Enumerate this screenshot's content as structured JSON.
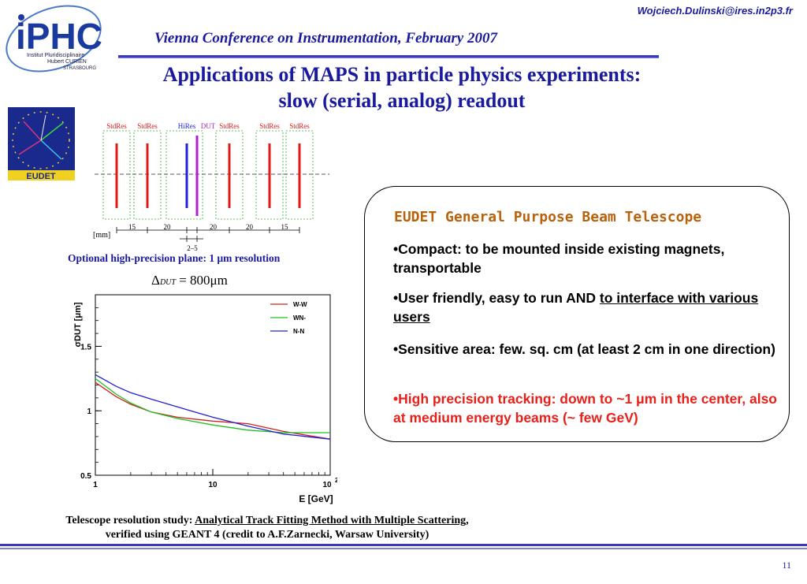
{
  "header": {
    "email": "Wojciech.Dulinski@ires.in2p3.fr",
    "conference": "Vienna Conference on Instrumentation, February 2007",
    "title_line1": "Applications of MAPS in particle physics experiments:",
    "title_line2": "slow (serial, analog) readout"
  },
  "logo": {
    "name": "iPHC",
    "line1": "Institut Pluridisciplinaire",
    "line2": "Hubert CURIEN",
    "line3": "STRASBOURG"
  },
  "eudet_logo": {
    "text": "EUDET"
  },
  "telescope_geometry": {
    "planes": [
      "StdRes",
      "StdRes",
      "HiRes",
      "DUT",
      "StdRes",
      "StdRes",
      "StdRes"
    ],
    "spacings": [
      "15",
      "20",
      "20",
      "20",
      "15"
    ],
    "unit_label": "[mm]",
    "dut_gap": "2–5",
    "colors": {
      "stdres": "#e01818",
      "hires": "#2020e0",
      "dut": "#b020d0"
    }
  },
  "caption": "Optional high-precision plane: 1 μm resolution",
  "formula": {
    "lhs": "Δ",
    "sub": "DUT",
    "rhs": "= 800μm"
  },
  "chart_data": {
    "type": "line",
    "xscale": "log",
    "xlim": [
      1,
      100
    ],
    "ylim": [
      0.5,
      1.9
    ],
    "xticks": [
      "1",
      "10",
      "10²"
    ],
    "yticks": [
      "0.5",
      "1",
      "1.5"
    ],
    "xlabel": "E [GeV]",
    "ylabel": "σDUT [μm]",
    "legend_position": "top-right",
    "series": [
      {
        "name": "W-W",
        "color": "#d02020",
        "x": [
          1,
          1.5,
          2,
          3,
          5,
          10,
          20,
          40,
          100
        ],
        "y": [
          1.22,
          1.11,
          1.05,
          0.99,
          0.95,
          0.92,
          0.9,
          0.84,
          0.78
        ]
      },
      {
        "name": "WN-",
        "color": "#20c020",
        "x": [
          1,
          1.5,
          2,
          3,
          5,
          10,
          20,
          40,
          100
        ],
        "y": [
          1.25,
          1.13,
          1.06,
          0.99,
          0.94,
          0.89,
          0.85,
          0.83,
          0.83
        ]
      },
      {
        "name": "N-N",
        "color": "#2020d0",
        "x": [
          1,
          1.5,
          2,
          3,
          5,
          10,
          20,
          40,
          100
        ],
        "y": [
          1.28,
          1.19,
          1.14,
          1.09,
          1.03,
          0.95,
          0.88,
          0.82,
          0.78
        ]
      }
    ]
  },
  "box": {
    "title": "EUDET General Purpose Beam Telescope",
    "b1": "•Compact: to be mounted inside existing magnets, transportable",
    "b2_pre": "•User friendly, easy to run AND ",
    "b2_link": "to interface with various users",
    "b3": "•Sensitive area: few. sq. cm (at least 2 cm in one direction)",
    "b4": "•High precision tracking: down to ~1 μm in the center, also at medium energy beams (~ few GeV)"
  },
  "footnote": {
    "pre": "Telescope resolution study: ",
    "ref": "Analytical Track Fitting Method with Multiple Scattering",
    "post": ",",
    "line2": "verified using GEANT 4  (credit to A.F.Zarnecki, Warsaw University)"
  },
  "page_number": "11"
}
